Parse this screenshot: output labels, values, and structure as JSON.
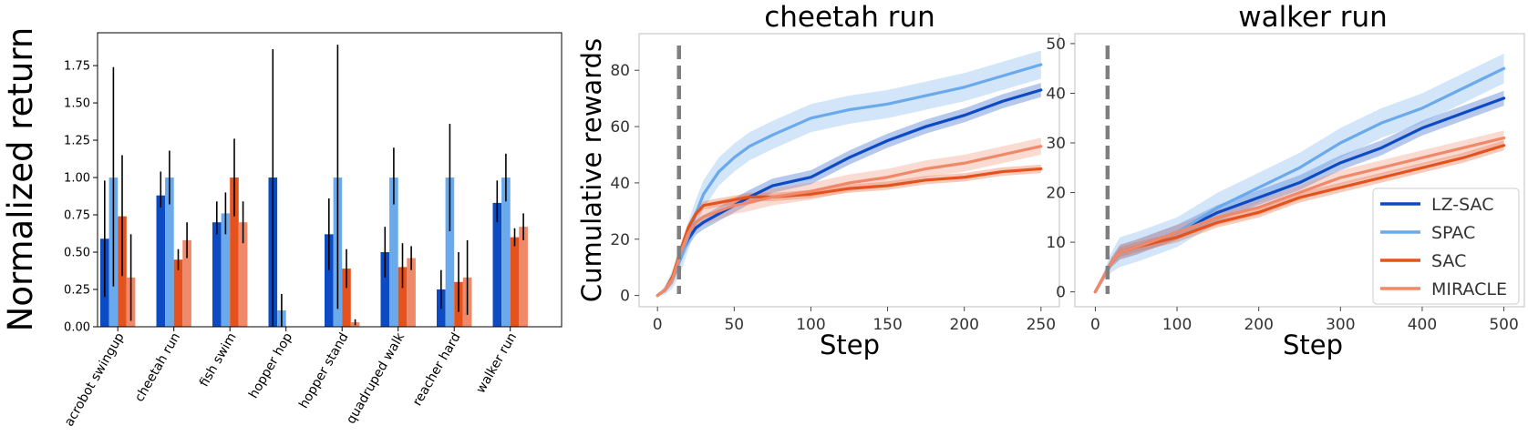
{
  "figure": {
    "legend_labels": [
      "LZ-SAC",
      "SPAC",
      "SAC",
      "MIRACLE"
    ]
  },
  "colors": {
    "LZ-SAC": "#0c4bc4",
    "SPAC": "#6aaaec",
    "SAC": "#e4531e",
    "MIRACLE": "#f0896a",
    "vline": "#7f7f7f",
    "errbar": "#000000"
  },
  "chart_data": [
    {
      "type": "bar",
      "title": "",
      "xlabel": "",
      "ylabel": "Normalized return",
      "ylim": [
        0,
        1.97
      ],
      "yticks": [
        0.0,
        0.25,
        0.5,
        0.75,
        1.0,
        1.25,
        1.5,
        1.75
      ],
      "ytick_labels": [
        "0.00",
        "0.25",
        "0.50",
        "0.75",
        "1.00",
        "1.25",
        "1.50",
        "1.75"
      ],
      "categories": [
        "acrobot swingup",
        "cheetah run",
        "fish swim",
        "hopper hop",
        "hopper stand",
        "quadruped walk",
        "reacher hard",
        "walker run"
      ],
      "series": [
        {
          "name": "LZ-SAC",
          "values": [
            0.59,
            0.88,
            0.7,
            1.0,
            0.62,
            0.5,
            0.25,
            0.83
          ],
          "err_low": [
            0.2,
            0.8,
            0.62,
            0.0,
            0.38,
            0.33,
            0.12,
            0.7
          ],
          "err_high": [
            0.98,
            1.04,
            0.84,
            1.86,
            0.86,
            0.67,
            0.38,
            0.98
          ]
        },
        {
          "name": "SPAC",
          "values": [
            1.0,
            1.0,
            0.76,
            0.11,
            1.0,
            1.0,
            1.0,
            1.0
          ],
          "err_low": [
            0.27,
            0.82,
            0.62,
            0.0,
            0.12,
            0.82,
            0.64,
            0.84
          ],
          "err_high": [
            1.74,
            1.18,
            0.9,
            0.22,
            1.89,
            1.2,
            1.36,
            1.16
          ]
        },
        {
          "name": "SAC",
          "values": [
            0.74,
            0.45,
            1.0,
            0.0,
            0.39,
            0.4,
            0.3,
            0.6
          ],
          "err_low": [
            0.34,
            0.38,
            0.74,
            0.0,
            0.26,
            0.26,
            0.1,
            0.54
          ],
          "err_high": [
            1.15,
            0.52,
            1.26,
            0.0,
            0.52,
            0.56,
            0.5,
            0.66
          ]
        },
        {
          "name": "MIRACLE",
          "values": [
            0.33,
            0.58,
            0.7,
            0.0,
            0.03,
            0.46,
            0.33,
            0.67
          ],
          "err_low": [
            0.04,
            0.46,
            0.56,
            0.0,
            0.01,
            0.38,
            0.08,
            0.58
          ],
          "err_high": [
            0.62,
            0.7,
            0.84,
            0.0,
            0.05,
            0.54,
            0.58,
            0.76
          ]
        }
      ]
    },
    {
      "type": "line",
      "title": "cheetah run",
      "xlabel": "Step",
      "ylabel": "Cumulative rewards",
      "xlim": [
        -12,
        262
      ],
      "ylim": [
        -4,
        93
      ],
      "xticks": [
        0,
        50,
        100,
        150,
        200,
        250
      ],
      "yticks": [
        0,
        20,
        40,
        60,
        80
      ],
      "vline_x": 14,
      "x": [
        0,
        5,
        10,
        15,
        20,
        25,
        30,
        40,
        50,
        60,
        75,
        100,
        125,
        150,
        175,
        200,
        225,
        250
      ],
      "series": [
        {
          "name": "LZ-SAC",
          "y": [
            0,
            2,
            6,
            14,
            20,
            24,
            26,
            29,
            32,
            35,
            39,
            42,
            49,
            55,
            60,
            64,
            69,
            73
          ],
          "band": 2.5
        },
        {
          "name": "SPAC",
          "y": [
            0,
            2,
            6,
            13,
            21,
            29,
            36,
            44,
            49,
            53,
            57,
            63,
            66,
            68,
            71,
            74,
            78,
            82
          ],
          "band": 5
        },
        {
          "name": "SAC",
          "y": [
            0,
            2,
            7,
            16,
            24,
            29,
            32,
            33,
            34,
            35,
            35,
            36,
            38,
            39,
            41,
            42,
            44,
            45
          ],
          "band": 1.5
        },
        {
          "name": "MIRACLE",
          "y": [
            0,
            2,
            6,
            15,
            22,
            26,
            28,
            30,
            32,
            33,
            35,
            37,
            40,
            42,
            45,
            47,
            50,
            53
          ],
          "band": 3
        }
      ]
    },
    {
      "type": "line",
      "title": "walker run",
      "xlabel": "Step",
      "ylabel": "",
      "xlim": [
        -25,
        525
      ],
      "ylim": [
        -3,
        52
      ],
      "xticks": [
        0,
        100,
        200,
        300,
        400,
        500
      ],
      "yticks": [
        0,
        10,
        20,
        30,
        40,
        50
      ],
      "vline_x": 15,
      "x": [
        0,
        10,
        20,
        30,
        50,
        100,
        150,
        200,
        250,
        300,
        350,
        400,
        450,
        500
      ],
      "series": [
        {
          "name": "LZ-SAC",
          "y": [
            0,
            3,
            6,
            8,
            9,
            12,
            16,
            19,
            22,
            26,
            29,
            33,
            36,
            39
          ],
          "band": 1.5
        },
        {
          "name": "SPAC",
          "y": [
            0,
            3,
            6,
            8,
            9,
            12,
            17,
            21,
            25,
            30,
            34,
            37,
            41,
            45
          ],
          "band": 3
        },
        {
          "name": "SAC",
          "y": [
            0,
            3,
            6,
            8,
            9,
            11,
            14,
            16,
            19,
            21,
            23,
            25,
            27,
            29.5
          ],
          "band": 1
        },
        {
          "name": "MIRACLE",
          "y": [
            0,
            3,
            6,
            8,
            9,
            12,
            15,
            17,
            20,
            23,
            25,
            27,
            29,
            31
          ],
          "band": 1.5
        }
      ]
    }
  ]
}
